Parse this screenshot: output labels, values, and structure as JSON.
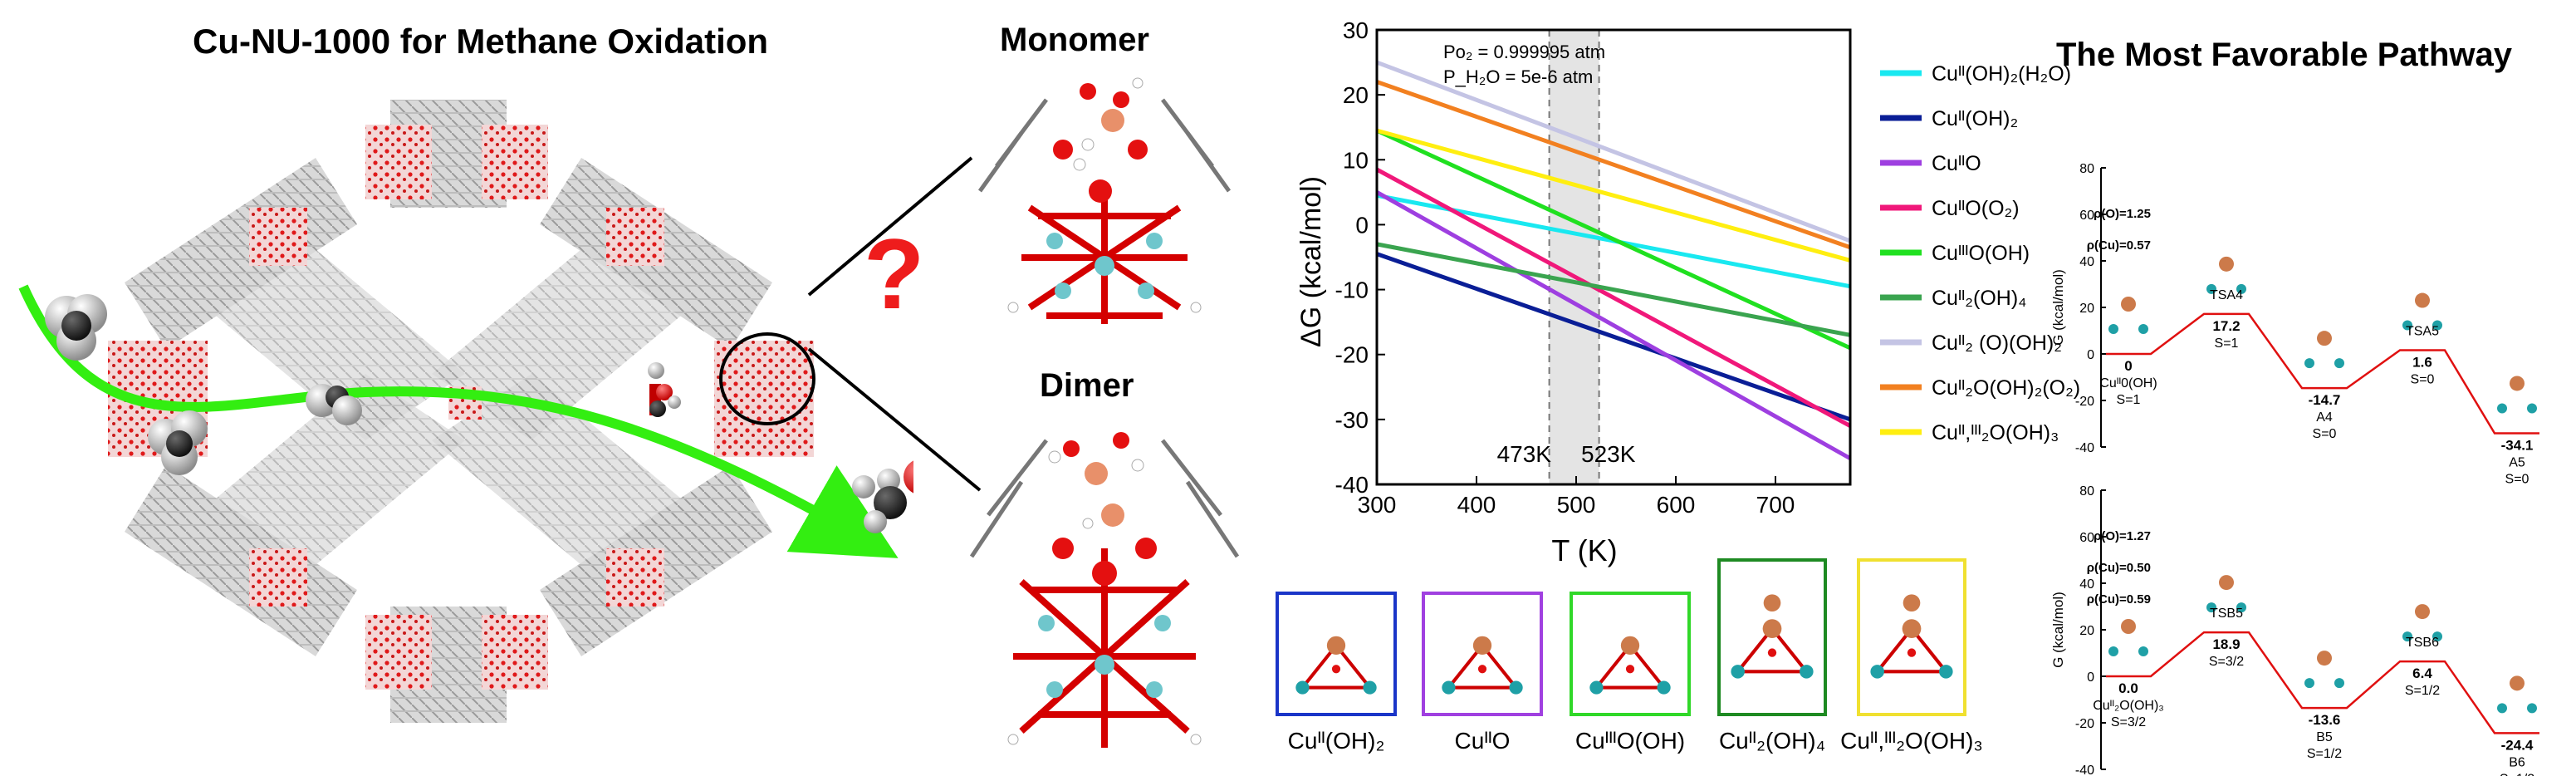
{
  "left_panel": {
    "title": "Cu-NU-1000 for Methane Oxidation",
    "question_mark": "?"
  },
  "middle_panel": {
    "monomer_label": "Monomer",
    "dimer_label": "Dimer"
  },
  "chart_data": [
    {
      "type": "line",
      "xlabel": "T (K)",
      "ylabel": "ΔG (kcal/mol)",
      "xlim": [
        300,
        775
      ],
      "ylim": [
        -40,
        30
      ],
      "xticks": [
        300,
        400,
        500,
        600,
        700
      ],
      "yticks": [
        -40,
        -30,
        -20,
        -10,
        0,
        10,
        20,
        30
      ],
      "grid": false,
      "legend_position": "right-outside",
      "annotations": {
        "po2": "Po₂ = 0.999995 atm",
        "ph2o": "P_H₂O = 5e-6 atm",
        "t_low": "473K",
        "t_high": "523K"
      },
      "shaded_band": [
        473,
        523
      ],
      "series": [
        {
          "name": "Cuᴵᴵ(OH)₂(H₂O)",
          "color": "#19e8f0",
          "x": [
            300,
            775
          ],
          "y": [
            4.5,
            -9.5
          ]
        },
        {
          "name": "Cuᴵᴵ(OH)₂",
          "color": "#0a1e96",
          "x": [
            300,
            775
          ],
          "y": [
            -4.5,
            -30
          ]
        },
        {
          "name": "CuᴵᴵO",
          "color": "#9e3fe0",
          "x": [
            300,
            775
          ],
          "y": [
            5,
            -36
          ]
        },
        {
          "name": "CuᴵᴵO(O₂)",
          "color": "#f0187a",
          "x": [
            300,
            775
          ],
          "y": [
            8.5,
            -31
          ]
        },
        {
          "name": "CuᴵᴵᴵO(OH)",
          "color": "#20e020",
          "x": [
            300,
            775
          ],
          "y": [
            14.5,
            -19
          ]
        },
        {
          "name": "Cuᴵᴵ₂(OH)₄",
          "color": "#3aa44f",
          "x": [
            300,
            775
          ],
          "y": [
            -3,
            -17
          ]
        },
        {
          "name": "Cuᴵᴵ₂ (O)(OH)₂",
          "color": "#c4c4e4",
          "x": [
            300,
            775
          ],
          "y": [
            25,
            -2.5
          ]
        },
        {
          "name": "Cuᴵᴵ₂O(OH)₂(O₂)",
          "color": "#f28020",
          "x": [
            300,
            775
          ],
          "y": [
            22,
            -3.5
          ]
        },
        {
          "name": "Cuᴵᴵ,ᴵᴵᴵ₂O(OH)₃",
          "color": "#ffee10",
          "x": [
            300,
            775
          ],
          "y": [
            14.5,
            -5.5
          ]
        }
      ]
    },
    {
      "type": "line",
      "title": "The Most Favorable Pathway",
      "ylabel": "G (kcal/mol)",
      "ylim": [
        -40,
        80
      ],
      "yticks": [
        -40,
        -20,
        0,
        20,
        40,
        60,
        80
      ],
      "steps": [
        {
          "value": 0,
          "label": "0",
          "name": "Cuᴵᴵ0(OH)",
          "spin": "S=1"
        },
        {
          "value": 17.2,
          "label": "17.2",
          "name": "TSA4",
          "spin": "S=1"
        },
        {
          "value": -14.7,
          "label": "-14.7",
          "name": "A4",
          "spin": "S=0"
        },
        {
          "value": 1.6,
          "label": "1.6",
          "name": "TSA5",
          "spin": "S=0"
        },
        {
          "value": -34.1,
          "label": "-34.1",
          "name": "A5",
          "spin": "S=0"
        }
      ],
      "annotations": [
        "ρ(O)=1.25",
        "ρ(Cu)=0.57"
      ]
    },
    {
      "type": "line",
      "ylabel": "G (kcal/mol)",
      "ylim": [
        -40,
        80
      ],
      "yticks": [
        -40,
        -20,
        0,
        20,
        40,
        60,
        80
      ],
      "steps": [
        {
          "value": 0.0,
          "label": "0.0",
          "name": "Cuᴵᴵ₂O(OH)₃",
          "spin": "S=3/2"
        },
        {
          "value": 18.9,
          "label": "18.9",
          "name": "TSB5",
          "spin": "S=3/2"
        },
        {
          "value": -13.6,
          "label": "-13.6",
          "name": "B5",
          "spin": "S=1/2"
        },
        {
          "value": 6.4,
          "label": "6.4",
          "name": "TSB6",
          "spin": "S=1/2"
        },
        {
          "value": -24.4,
          "label": "-24.4",
          "name": "B6",
          "spin": "S=1/2"
        }
      ],
      "annotations": [
        "ρ(O)=1.27",
        "ρ(Cu)=0.50",
        "ρ(Cu)=0.59"
      ]
    }
  ],
  "structure_boxes": [
    {
      "label": "Cuᴵᴵ(OH)₂",
      "border": "#1a35c8"
    },
    {
      "label": "CuᴵᴵO",
      "border": "#a040e0"
    },
    {
      "label": "CuᴵᴵᴵO(OH)",
      "border": "#30d828"
    },
    {
      "label": "Cuᴵᴵ₂(OH)₄",
      "border": "#1e8a22"
    },
    {
      "label": "Cuᴵᴵ,ᴵᴵᴵ₂O(OH)₃",
      "border": "#f0e030"
    }
  ]
}
